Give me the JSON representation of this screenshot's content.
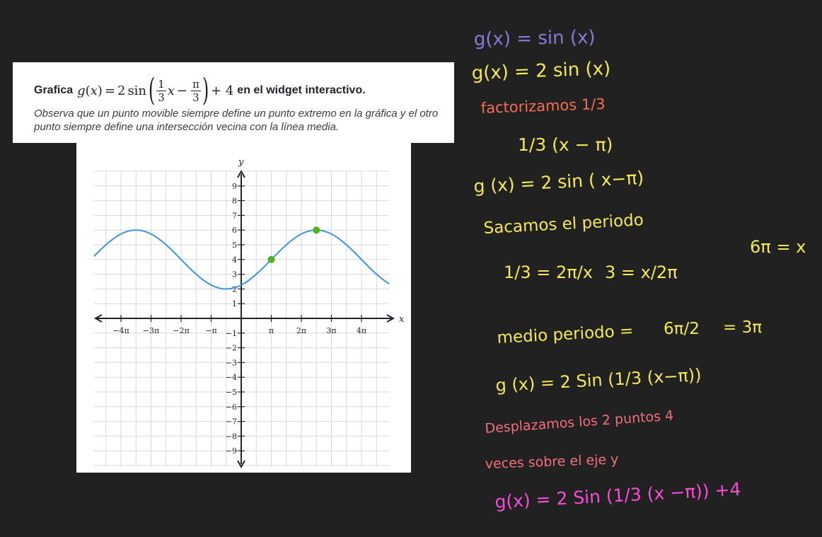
{
  "problem": {
    "prompt_prefix": "Grafica",
    "func_g": "g",
    "func_var": "x",
    "equals": "=",
    "coef": "2",
    "sin": "sin",
    "frac1_num": "1",
    "frac1_den": "3",
    "inner_var": "x",
    "minus": "−",
    "frac2_num": "π",
    "frac2_den": "3",
    "plus_term": "+ 4",
    "prompt_suffix": "en el widget interactivo.",
    "hint": "Observa que un punto movible siempre define un punto extremo en la gráfica y el otro punto siempre define una intersección vecina con la línea media."
  },
  "graph": {
    "x_axis_label": "x",
    "y_axis_label": "y",
    "x_ticks": [
      {
        "value": -4,
        "label": "−4π"
      },
      {
        "value": -3,
        "label": "−3π"
      },
      {
        "value": -2,
        "label": "−2π"
      },
      {
        "value": -1,
        "label": "−π"
      },
      {
        "value": 1,
        "label": "π"
      },
      {
        "value": 2,
        "label": "2π"
      },
      {
        "value": 3,
        "label": "3π"
      },
      {
        "value": 4,
        "label": "4π"
      }
    ],
    "y_ticks": [
      {
        "value": 9,
        "label": "9"
      },
      {
        "value": 8,
        "label": "8"
      },
      {
        "value": 7,
        "label": "7"
      },
      {
        "value": 6,
        "label": "6"
      },
      {
        "value": 5,
        "label": "5"
      },
      {
        "value": 4,
        "label": "4"
      },
      {
        "value": 3,
        "label": "3"
      },
      {
        "value": 2,
        "label": "2"
      },
      {
        "value": 1,
        "label": "1"
      },
      {
        "value": -1,
        "label": "−1"
      },
      {
        "value": -2,
        "label": "−2"
      },
      {
        "value": -3,
        "label": "−3"
      },
      {
        "value": -4,
        "label": "−4"
      },
      {
        "value": -5,
        "label": "−5"
      },
      {
        "value": -6,
        "label": "−6"
      },
      {
        "value": -7,
        "label": "−7"
      },
      {
        "value": -8,
        "label": "−8"
      },
      {
        "value": -9,
        "label": "−9"
      }
    ],
    "x_range_pi": [
      -5,
      5
    ],
    "y_range": [
      -10,
      10
    ],
    "curve": {
      "amplitude": 2,
      "frequency": 0.3333,
      "phase_shift_pi": 1,
      "midline": 4
    },
    "movable_points": [
      {
        "name": "midline-point",
        "x_pi": 1,
        "y": 4
      },
      {
        "name": "maximum-point",
        "x_pi": 2.5,
        "y": 6
      }
    ],
    "colors": {
      "curve": "#3d94e0",
      "point": "#4cb51a",
      "grid": "#d8d8d8",
      "axis": "#21242c"
    }
  },
  "notes": [
    {
      "text": "g(x) = sin (x)",
      "color": "#8a79d8"
    },
    {
      "text": "g(x) = 2 sin (x)",
      "color": "#f4e94f"
    },
    {
      "text": "factorizamos 1/3",
      "color": "#f36e52"
    },
    {
      "text": "1/3 (x − π)",
      "color": "#f4e94f"
    },
    {
      "text": "g (x) = 2 sin ( x−π)",
      "color": "#f4e94f"
    },
    {
      "text": "Sacamos el periodo",
      "color": "#f4e94f"
    },
    {
      "text": "1/3 = 2π/x",
      "color": "#f4e94f"
    },
    {
      "text": "3 = x/2π",
      "color": "#f4e94f"
    },
    {
      "text": "6π = x",
      "color": "#f4e94f"
    },
    {
      "text": "medio periodo =",
      "color": "#f4e94f"
    },
    {
      "text": "6π/2",
      "color": "#f4e94f"
    },
    {
      "text": "= 3π",
      "color": "#f4e94f"
    },
    {
      "text": "g (x) = 2 Sin (1/3 (x−π))",
      "color": "#f4e94f"
    },
    {
      "text": "Desplazamos los 2 puntos 4",
      "color": "#f36e7c"
    },
    {
      "text": "veces sobre el eje y",
      "color": "#f36e7c"
    },
    {
      "text": "g(x) = 2 Sin (1/3 (x −π)) +4",
      "color": "#f74bd8"
    }
  ]
}
